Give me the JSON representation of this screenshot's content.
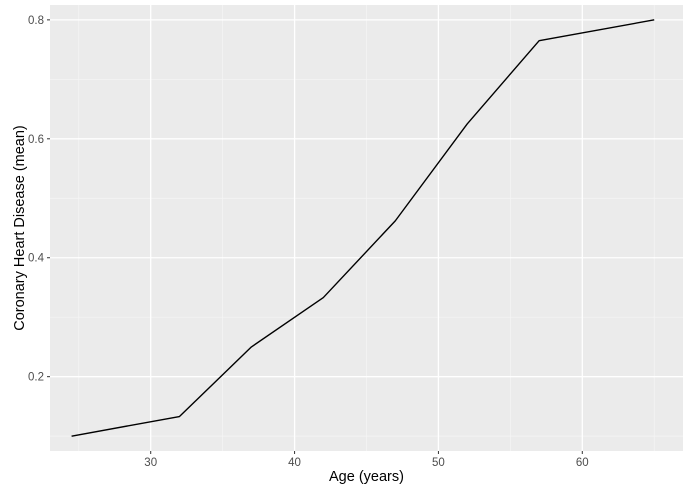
{
  "chart_data": {
    "type": "line",
    "title": "",
    "xlabel": "Age (years)",
    "ylabel": "Coronary Heart Disease (mean)",
    "xlim": [
      23,
      67
    ],
    "ylim": [
      0.075,
      0.825
    ],
    "x_ticks": [
      30,
      40,
      50,
      60
    ],
    "y_ticks": [
      0.2,
      0.4,
      0.6,
      0.8
    ],
    "x_tick_labels": [
      "30",
      "40",
      "50",
      "60"
    ],
    "y_tick_labels": [
      "0.2",
      "0.4",
      "0.6",
      "0.8"
    ],
    "grid": true,
    "legend": "none",
    "colors": {
      "panel_background": "#ebebeb",
      "grid_major": "#ffffff",
      "grid_minor": "#f5f5f5",
      "line": "#000000",
      "tick_text": "#4d4d4d",
      "tick_mark": "#333333"
    },
    "x": [
      24.5,
      32,
      37,
      42,
      47,
      52,
      57,
      65
    ],
    "series": [
      {
        "values": [
          0.1,
          0.133,
          0.25,
          0.333,
          0.462,
          0.625,
          0.765,
          0.8
        ]
      }
    ]
  }
}
